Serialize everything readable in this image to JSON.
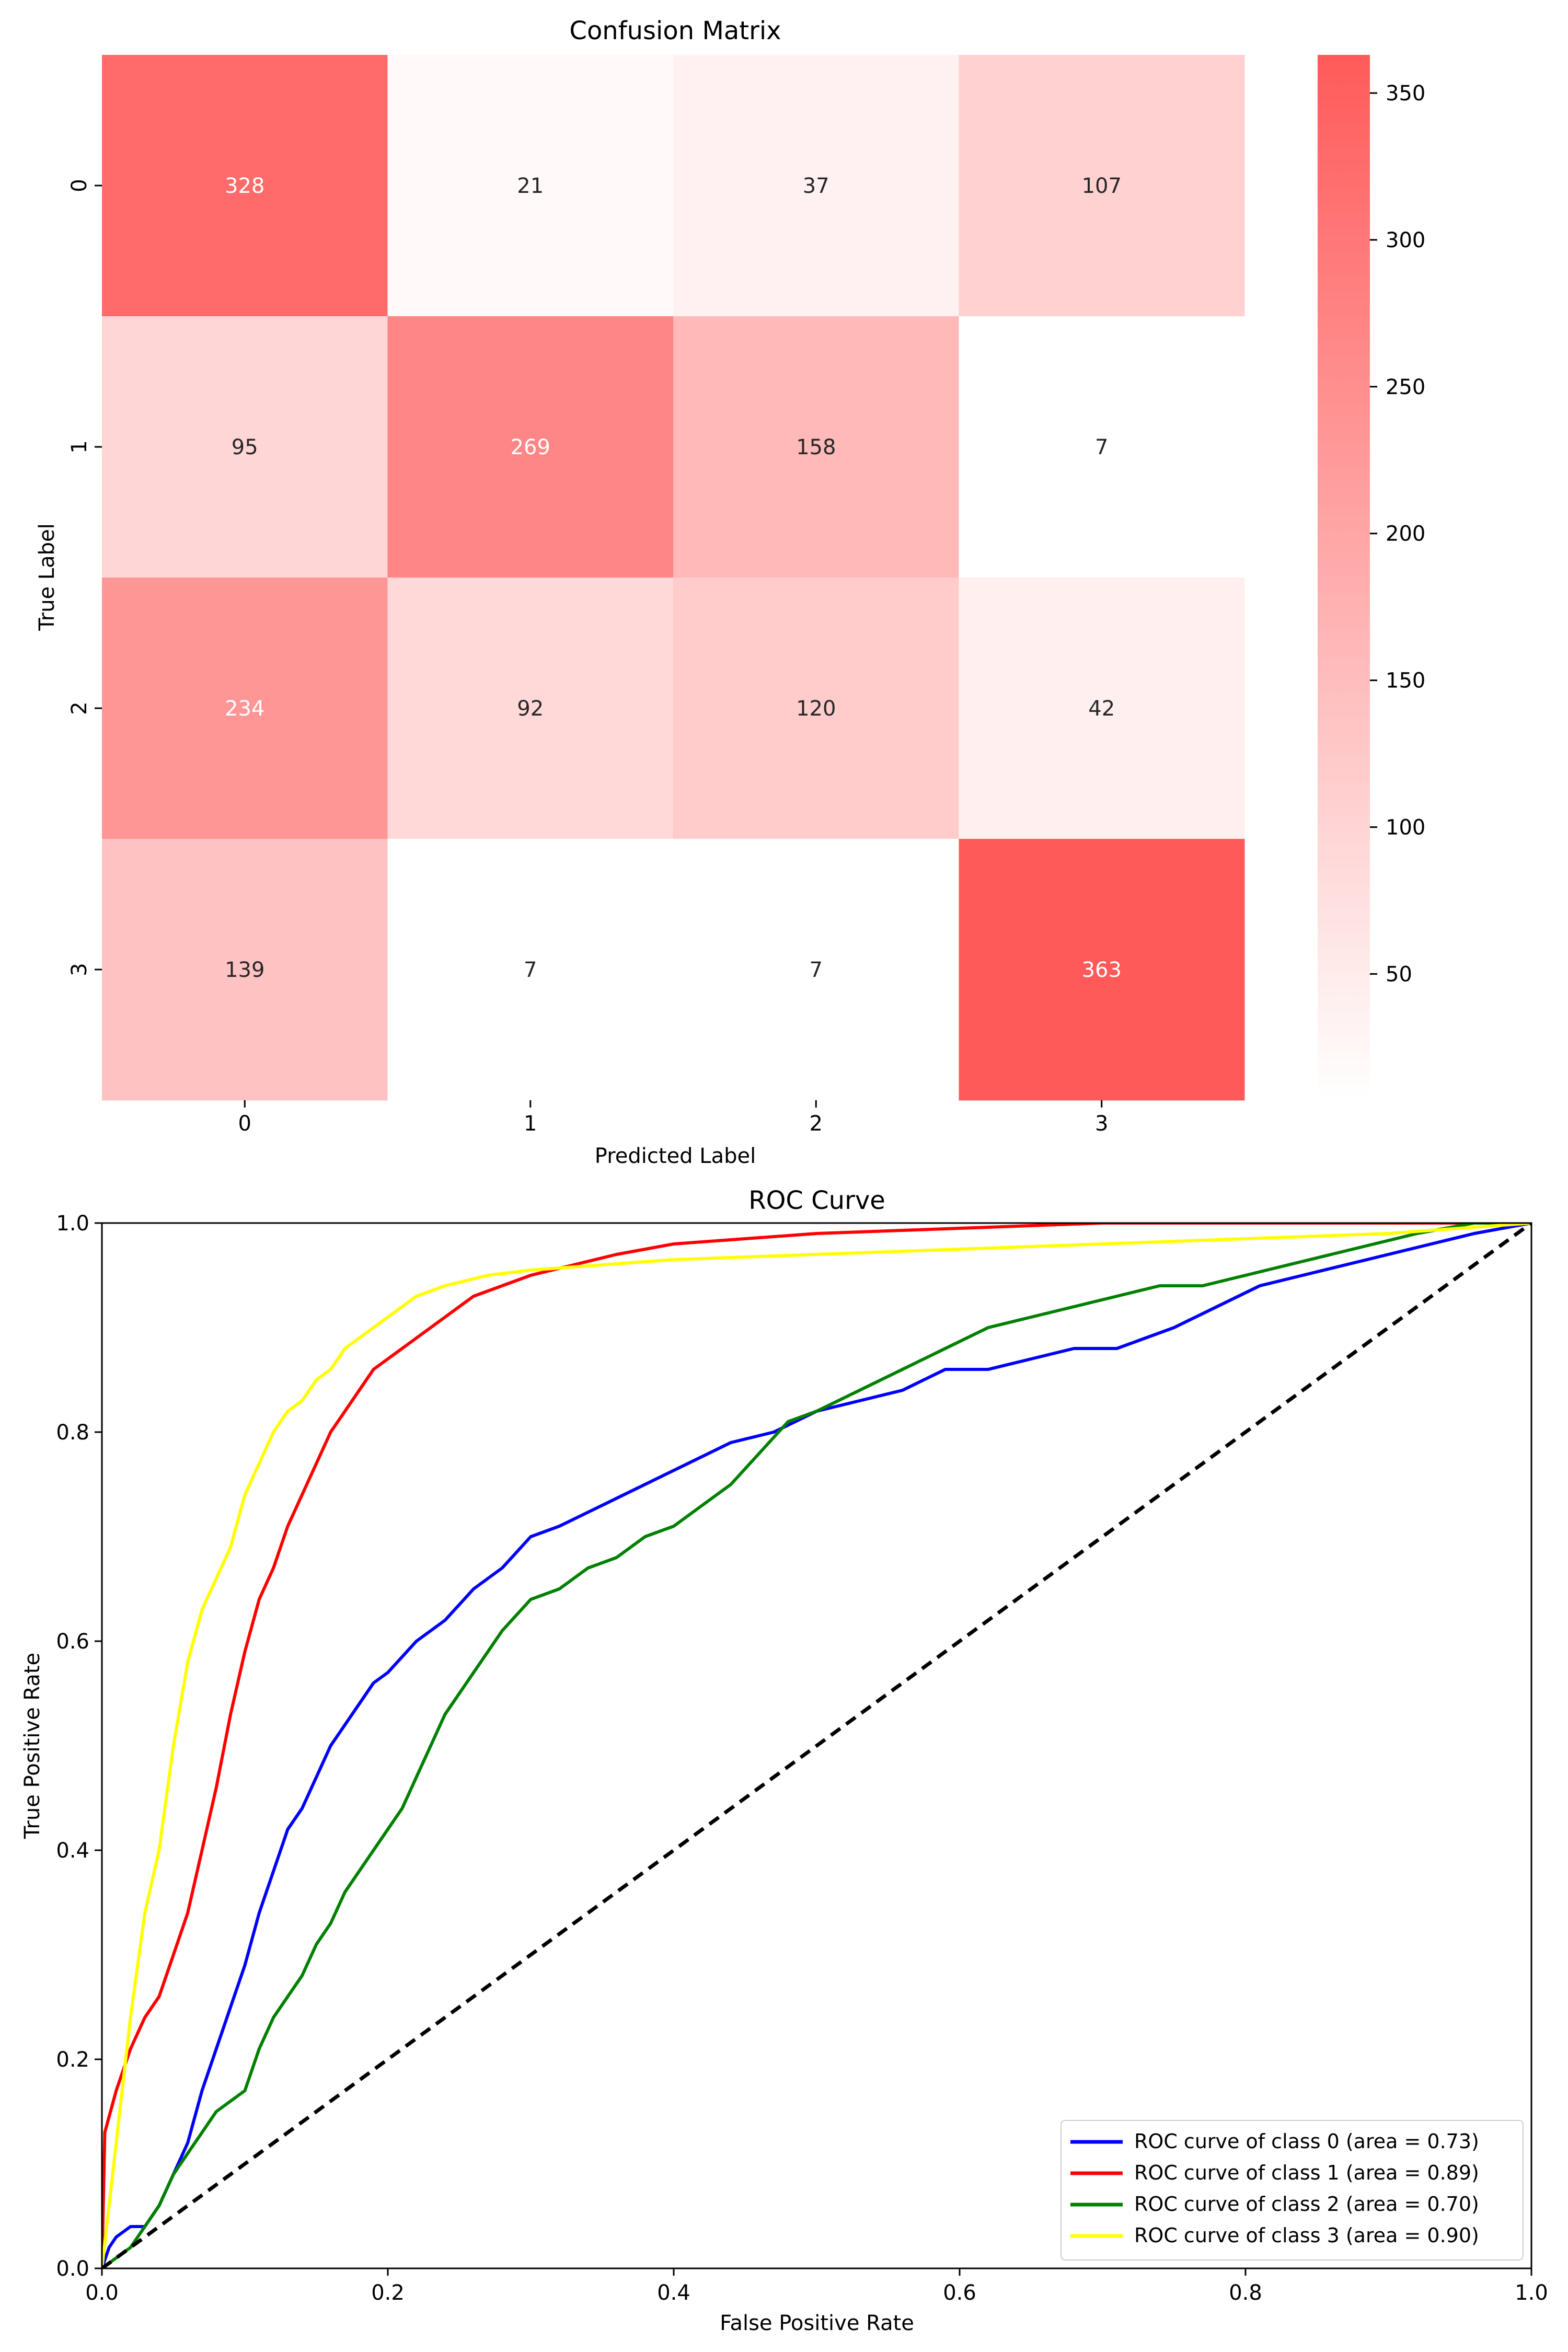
{
  "chart_data": [
    {
      "type": "heatmap",
      "title": "Confusion Matrix",
      "xlabel": "Predicted Label",
      "ylabel": "True Label",
      "x_categories": [
        "0",
        "1",
        "2",
        "3"
      ],
      "y_categories": [
        "0",
        "1",
        "2",
        "3"
      ],
      "values": [
        [
          328,
          21,
          37,
          107
        ],
        [
          95,
          269,
          158,
          7
        ],
        [
          234,
          92,
          120,
          42
        ],
        [
          139,
          7,
          7,
          363
        ]
      ],
      "colorbar": {
        "ticks": [
          50,
          100,
          150,
          200,
          250,
          300,
          350
        ],
        "min": 7,
        "max": 363,
        "low_color": "#ffffff",
        "high_color": "#ff5a5a"
      },
      "annotation_text_colors": {
        "dark_cell": "#ffffff",
        "light_cell": "#262626"
      }
    },
    {
      "type": "line",
      "title": "ROC Curve",
      "xlabel": "False Positive Rate",
      "ylabel": "True Positive Rate",
      "xlim": [
        0.0,
        1.0
      ],
      "ylim": [
        0.0,
        1.0
      ],
      "xticks": [
        "0.0",
        "0.2",
        "0.4",
        "0.6",
        "0.8",
        "1.0"
      ],
      "yticks": [
        "0.0",
        "0.2",
        "0.4",
        "0.6",
        "0.8",
        "1.0"
      ],
      "legend_position": "lower-right",
      "series": [
        {
          "name": "ROC curve of class 0 (area = 0.73)",
          "color": "#0000ff",
          "points": [
            [
              0,
              0
            ],
            [
              0.005,
              0.02
            ],
            [
              0.01,
              0.03
            ],
            [
              0.02,
              0.04
            ],
            [
              0.03,
              0.04
            ],
            [
              0.04,
              0.06
            ],
            [
              0.05,
              0.09
            ],
            [
              0.06,
              0.12
            ],
            [
              0.07,
              0.17
            ],
            [
              0.08,
              0.21
            ],
            [
              0.09,
              0.25
            ],
            [
              0.1,
              0.29
            ],
            [
              0.11,
              0.34
            ],
            [
              0.12,
              0.38
            ],
            [
              0.13,
              0.42
            ],
            [
              0.14,
              0.44
            ],
            [
              0.15,
              0.47
            ],
            [
              0.16,
              0.5
            ],
            [
              0.17,
              0.52
            ],
            [
              0.18,
              0.54
            ],
            [
              0.19,
              0.56
            ],
            [
              0.2,
              0.57
            ],
            [
              0.22,
              0.6
            ],
            [
              0.24,
              0.62
            ],
            [
              0.26,
              0.65
            ],
            [
              0.28,
              0.67
            ],
            [
              0.3,
              0.7
            ],
            [
              0.32,
              0.71
            ],
            [
              0.35,
              0.73
            ],
            [
              0.38,
              0.75
            ],
            [
              0.41,
              0.77
            ],
            [
              0.44,
              0.79
            ],
            [
              0.47,
              0.8
            ],
            [
              0.5,
              0.82
            ],
            [
              0.53,
              0.83
            ],
            [
              0.56,
              0.84
            ],
            [
              0.59,
              0.86
            ],
            [
              0.62,
              0.86
            ],
            [
              0.65,
              0.87
            ],
            [
              0.68,
              0.88
            ],
            [
              0.71,
              0.88
            ],
            [
              0.73,
              0.89
            ],
            [
              0.75,
              0.9
            ],
            [
              0.78,
              0.92
            ],
            [
              0.81,
              0.94
            ],
            [
              0.84,
              0.95
            ],
            [
              0.87,
              0.96
            ],
            [
              0.9,
              0.97
            ],
            [
              0.93,
              0.98
            ],
            [
              0.96,
              0.99
            ],
            [
              1.0,
              1.0
            ]
          ]
        },
        {
          "name": "ROC curve of class 1 (area = 0.89)",
          "color": "#ff0000",
          "points": [
            [
              0,
              0
            ],
            [
              0.002,
              0.13
            ],
            [
              0.01,
              0.17
            ],
            [
              0.02,
              0.21
            ],
            [
              0.03,
              0.24
            ],
            [
              0.04,
              0.26
            ],
            [
              0.05,
              0.3
            ],
            [
              0.06,
              0.34
            ],
            [
              0.07,
              0.4
            ],
            [
              0.08,
              0.46
            ],
            [
              0.09,
              0.53
            ],
            [
              0.1,
              0.59
            ],
            [
              0.11,
              0.64
            ],
            [
              0.12,
              0.67
            ],
            [
              0.13,
              0.71
            ],
            [
              0.14,
              0.74
            ],
            [
              0.15,
              0.77
            ],
            [
              0.16,
              0.8
            ],
            [
              0.17,
              0.82
            ],
            [
              0.18,
              0.84
            ],
            [
              0.19,
              0.86
            ],
            [
              0.2,
              0.87
            ],
            [
              0.22,
              0.89
            ],
            [
              0.24,
              0.91
            ],
            [
              0.26,
              0.93
            ],
            [
              0.28,
              0.94
            ],
            [
              0.3,
              0.95
            ],
            [
              0.33,
              0.96
            ],
            [
              0.36,
              0.97
            ],
            [
              0.4,
              0.98
            ],
            [
              0.45,
              0.985
            ],
            [
              0.5,
              0.99
            ],
            [
              0.6,
              0.995
            ],
            [
              0.7,
              1.0
            ],
            [
              1.0,
              1.0
            ]
          ]
        },
        {
          "name": "ROC curve of class 2 (area = 0.70)",
          "color": "#008000",
          "points": [
            [
              0,
              0
            ],
            [
              0.01,
              0.01
            ],
            [
              0.02,
              0.02
            ],
            [
              0.03,
              0.04
            ],
            [
              0.04,
              0.06
            ],
            [
              0.05,
              0.09
            ],
            [
              0.06,
              0.11
            ],
            [
              0.07,
              0.13
            ],
            [
              0.08,
              0.15
            ],
            [
              0.09,
              0.16
            ],
            [
              0.1,
              0.17
            ],
            [
              0.11,
              0.21
            ],
            [
              0.12,
              0.24
            ],
            [
              0.13,
              0.26
            ],
            [
              0.14,
              0.28
            ],
            [
              0.15,
              0.31
            ],
            [
              0.16,
              0.33
            ],
            [
              0.17,
              0.36
            ],
            [
              0.18,
              0.38
            ],
            [
              0.19,
              0.4
            ],
            [
              0.2,
              0.42
            ],
            [
              0.21,
              0.44
            ],
            [
              0.22,
              0.47
            ],
            [
              0.23,
              0.5
            ],
            [
              0.24,
              0.53
            ],
            [
              0.25,
              0.55
            ],
            [
              0.26,
              0.57
            ],
            [
              0.27,
              0.59
            ],
            [
              0.28,
              0.61
            ],
            [
              0.3,
              0.64
            ],
            [
              0.32,
              0.65
            ],
            [
              0.34,
              0.67
            ],
            [
              0.36,
              0.68
            ],
            [
              0.38,
              0.7
            ],
            [
              0.4,
              0.71
            ],
            [
              0.42,
              0.73
            ],
            [
              0.44,
              0.75
            ],
            [
              0.46,
              0.78
            ],
            [
              0.48,
              0.81
            ],
            [
              0.5,
              0.82
            ],
            [
              0.53,
              0.84
            ],
            [
              0.56,
              0.86
            ],
            [
              0.59,
              0.88
            ],
            [
              0.62,
              0.9
            ],
            [
              0.65,
              0.91
            ],
            [
              0.68,
              0.92
            ],
            [
              0.71,
              0.93
            ],
            [
              0.74,
              0.94
            ],
            [
              0.77,
              0.94
            ],
            [
              0.8,
              0.95
            ],
            [
              0.83,
              0.96
            ],
            [
              0.86,
              0.97
            ],
            [
              0.89,
              0.98
            ],
            [
              0.92,
              0.99
            ],
            [
              0.96,
              1.0
            ],
            [
              1.0,
              1.0
            ]
          ]
        },
        {
          "name": "ROC curve of class 3 (area = 0.90)",
          "color": "#ffff00",
          "points": [
            [
              0,
              0
            ],
            [
              0.005,
              0.06
            ],
            [
              0.01,
              0.12
            ],
            [
              0.015,
              0.18
            ],
            [
              0.02,
              0.24
            ],
            [
              0.025,
              0.29
            ],
            [
              0.03,
              0.34
            ],
            [
              0.04,
              0.4
            ],
            [
              0.05,
              0.5
            ],
            [
              0.06,
              0.58
            ],
            [
              0.07,
              0.63
            ],
            [
              0.08,
              0.66
            ],
            [
              0.09,
              0.69
            ],
            [
              0.1,
              0.74
            ],
            [
              0.11,
              0.77
            ],
            [
              0.12,
              0.8
            ],
            [
              0.13,
              0.82
            ],
            [
              0.14,
              0.83
            ],
            [
              0.15,
              0.85
            ],
            [
              0.16,
              0.86
            ],
            [
              0.17,
              0.88
            ],
            [
              0.18,
              0.89
            ],
            [
              0.19,
              0.9
            ],
            [
              0.2,
              0.91
            ],
            [
              0.22,
              0.93
            ],
            [
              0.24,
              0.94
            ],
            [
              0.27,
              0.95
            ],
            [
              0.3,
              0.955
            ],
            [
              0.35,
              0.96
            ],
            [
              0.4,
              0.965
            ],
            [
              0.5,
              0.97
            ],
            [
              0.6,
              0.975
            ],
            [
              0.7,
              0.98
            ],
            [
              0.8,
              0.985
            ],
            [
              0.9,
              0.99
            ],
            [
              0.95,
              0.995
            ],
            [
              1.0,
              1.0
            ]
          ]
        },
        {
          "name": "",
          "color": "#000000",
          "dashed": true,
          "points": [
            [
              0,
              0
            ],
            [
              1,
              1
            ]
          ]
        }
      ]
    }
  ]
}
